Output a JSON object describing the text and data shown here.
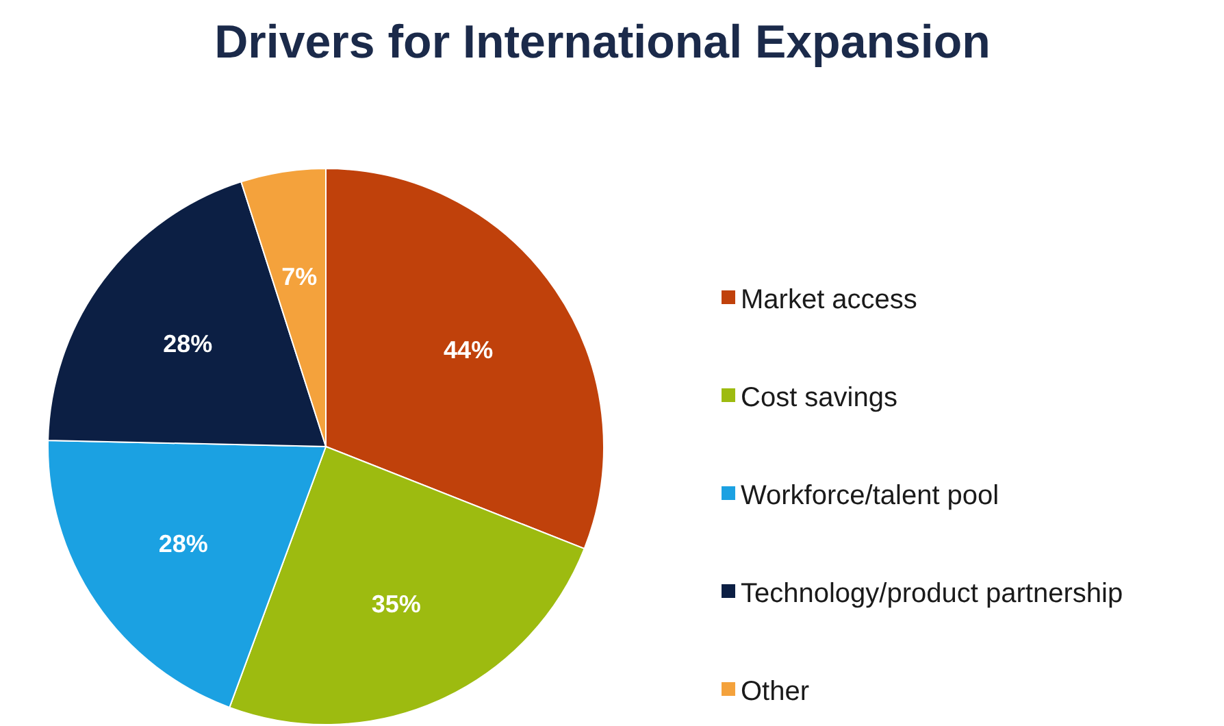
{
  "chart_data": {
    "type": "pie",
    "title": "Drivers for International Expansion",
    "categories": [
      "Market access",
      "Cost savings",
      "Workforce/talent pool",
      "Technology/product partnership",
      "Other"
    ],
    "values": [
      44,
      35,
      28,
      28,
      7
    ],
    "colors": [
      "#c0410b",
      "#9dbb10",
      "#1ba1e2",
      "#0c1f44",
      "#f4a23c"
    ],
    "value_labels": [
      "44%",
      "35%",
      "28%",
      "28%",
      "7%"
    ],
    "legend": "right"
  }
}
